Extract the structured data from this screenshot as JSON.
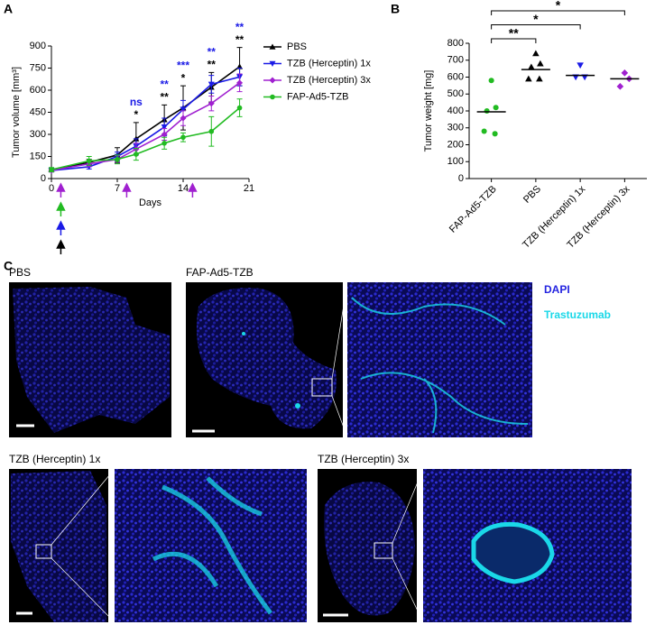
{
  "panels": [
    "A",
    "B",
    "C"
  ],
  "chart_data": [
    {
      "type": "line",
      "x_label": "Days",
      "y_label": "Tumor volume [mm³]",
      "xlim": [
        0,
        21
      ],
      "xticks": [
        0,
        7,
        14,
        21
      ],
      "ylim": [
        0,
        900
      ],
      "yticks": [
        0,
        150,
        300,
        450,
        600,
        750,
        900
      ],
      "x": [
        0,
        4,
        7,
        9,
        12,
        14,
        17,
        20
      ],
      "series": [
        {
          "name": "PBS",
          "color": "#000000",
          "marker": "triangle-up",
          "values": [
            60,
            110,
            160,
            270,
            400,
            480,
            620,
            760
          ],
          "errors": [
            10,
            20,
            50,
            110,
            100,
            150,
            100,
            130
          ],
          "dosing_days": [
            1
          ]
        },
        {
          "name": "TZB (Herceptin) 1x",
          "color": "#1a1ae6",
          "marker": "triangle-down",
          "values": [
            55,
            80,
            150,
            220,
            350,
            470,
            640,
            690
          ],
          "errors": [
            10,
            15,
            30,
            50,
            60,
            60,
            60,
            60
          ],
          "dosing_days": [
            1
          ]
        },
        {
          "name": "TZB (Herceptin) 3x",
          "color": "#a020d0",
          "marker": "diamond",
          "values": [
            55,
            100,
            130,
            200,
            300,
            410,
            510,
            650
          ],
          "errors": [
            10,
            20,
            25,
            40,
            40,
            50,
            50,
            60
          ],
          "dosing_days": [
            1,
            8,
            15
          ]
        },
        {
          "name": "FAP-Ad5-TZB",
          "color": "#22bb22",
          "marker": "circle",
          "values": [
            60,
            120,
            130,
            165,
            240,
            280,
            320,
            480
          ],
          "errors": [
            15,
            30,
            30,
            40,
            40,
            30,
            100,
            60
          ],
          "dosing_days": [
            1
          ]
        }
      ],
      "annotation_colors": [
        "#1a1ae6",
        "#000000"
      ],
      "annotations": [
        {
          "x": 9,
          "labels": [
            "ns",
            "*"
          ]
        },
        {
          "x": 12,
          "labels": [
            "**",
            "**"
          ]
        },
        {
          "x": 14,
          "labels": [
            "***",
            "*"
          ]
        },
        {
          "x": 17,
          "labels": [
            "**",
            "**"
          ]
        },
        {
          "x": 20,
          "labels": [
            "**",
            "**"
          ]
        }
      ]
    },
    {
      "type": "dot",
      "y_label": "Tumor weight [mg]",
      "ylim": [
        0,
        800
      ],
      "yticks": [
        0,
        100,
        200,
        300,
        400,
        500,
        600,
        700,
        800
      ],
      "categories": [
        "FAP-Ad5-TZB",
        "PBS",
        "TZB (Herceptin) 1x",
        "TZB (Herceptin) 3x"
      ],
      "colors": [
        "#22bb22",
        "#000000",
        "#1a1ae6",
        "#a020d0"
      ],
      "markers": [
        "circle",
        "triangle-up",
        "triangle-down",
        "diamond"
      ],
      "values": [
        [
          580,
          420,
          400,
          280,
          265
        ],
        [
          740,
          680,
          660,
          590,
          590
        ],
        [
          670,
          600,
          600
        ],
        [
          625,
          590,
          545
        ]
      ],
      "centers": [
        395,
        645,
        610,
        590
      ],
      "comparisons": [
        {
          "from": 0,
          "to": 1,
          "label": "**"
        },
        {
          "from": 0,
          "to": 2,
          "label": "*"
        },
        {
          "from": 0,
          "to": 3,
          "label": "*"
        }
      ]
    }
  ],
  "images": {
    "labels": [
      "PBS",
      "FAP-Ad5-TZB",
      "TZB (Herceptin) 1x",
      "TZB (Herceptin) 3x"
    ],
    "channels": [
      {
        "name": "DAPI",
        "color": "#2424e0"
      },
      {
        "name": "Trastuzumab",
        "color": "#1ad8e8"
      }
    ]
  }
}
